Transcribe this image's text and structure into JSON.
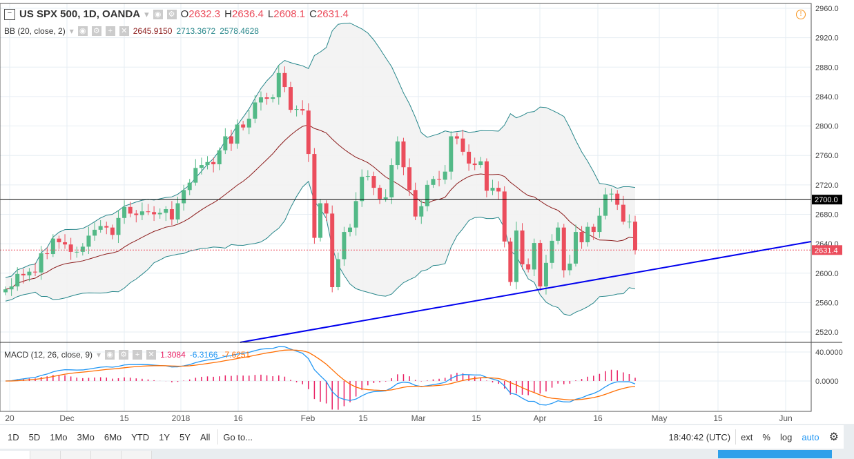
{
  "symbol": {
    "title": "US SPX 500, 1D, OANDA",
    "o_label": "O",
    "o": "2632.3",
    "h_label": "H",
    "h": "2636.4",
    "l_label": "L",
    "l": "2608.1",
    "c_label": "C",
    "c": "2631.4"
  },
  "bb": {
    "label": "BB (20, close, 2)",
    "basis": "2645.9150",
    "upper": "2713.3672",
    "lower": "2578.4628"
  },
  "macd": {
    "label": "MACD (12, 26, close, 9)",
    "hist": "1.3084",
    "macd": "-6.3166",
    "signal": "-7.6251"
  },
  "colors": {
    "up": "#53b987",
    "down": "#eb4d5c",
    "bb_band": "#26868a",
    "bb_basis": "#8b1a1a",
    "macd": "#2196f3",
    "signal": "#ff6d00",
    "hist": "#e91e63",
    "trendline": "#0000ee"
  },
  "price_axis": {
    "ticks": [
      "2960.0",
      "2920.0",
      "2880.0",
      "2840.0",
      "2800.0",
      "2760.0",
      "2720.0",
      "2680.0",
      "2640.0",
      "2600.0",
      "2560.0",
      "2520.0"
    ],
    "hline_label": "2700.0",
    "last_label": "2631.4"
  },
  "macd_axis": {
    "ticks": [
      "40.0000",
      "0.0000"
    ]
  },
  "time_axis": [
    "20",
    "Dec",
    "15",
    "2018",
    "16",
    "Feb",
    "15",
    "Mar",
    "15",
    "Apr",
    "16",
    "May",
    "15",
    "Jun"
  ],
  "closes": [
    2578,
    2582,
    2599,
    2597,
    2602,
    2601,
    2627,
    2626,
    2647,
    2642,
    2639,
    2629,
    2629,
    2636,
    2651,
    2659,
    2664,
    2662,
    2652,
    2675,
    2690,
    2681,
    2679,
    2684,
    2683,
    2680,
    2682,
    2687,
    2673,
    2695,
    2713,
    2723,
    2743,
    2747,
    2751,
    2748,
    2767,
    2786,
    2776,
    2802,
    2798,
    2810,
    2832,
    2839,
    2837,
    2839,
    2872,
    2853,
    2822,
    2823,
    2821,
    2762,
    2648,
    2695,
    2681,
    2581,
    2619,
    2656,
    2662,
    2698,
    2731,
    2732,
    2716,
    2701,
    2703,
    2747,
    2779,
    2744,
    2713,
    2677,
    2691,
    2720,
    2728,
    2727,
    2738,
    2786,
    2783,
    2765,
    2749,
    2747,
    2752,
    2712,
    2716,
    2711,
    2643,
    2588,
    2658,
    2612,
    2605,
    2641,
    2582,
    2614,
    2644,
    2662,
    2604,
    2613,
    2656,
    2642,
    2663,
    2656,
    2678,
    2707,
    2708,
    2693,
    2670,
    2670,
    2631.4
  ],
  "horizontal_line_price": 2700,
  "ranges": [
    "1D",
    "5D",
    "1Mo",
    "3Mo",
    "6Mo",
    "YTD",
    "1Y",
    "5Y",
    "All"
  ],
  "goto": "Go to...",
  "clock": "18:40:42 (UTC)",
  "scale_opts": [
    "ext",
    "%",
    "log",
    "auto"
  ]
}
